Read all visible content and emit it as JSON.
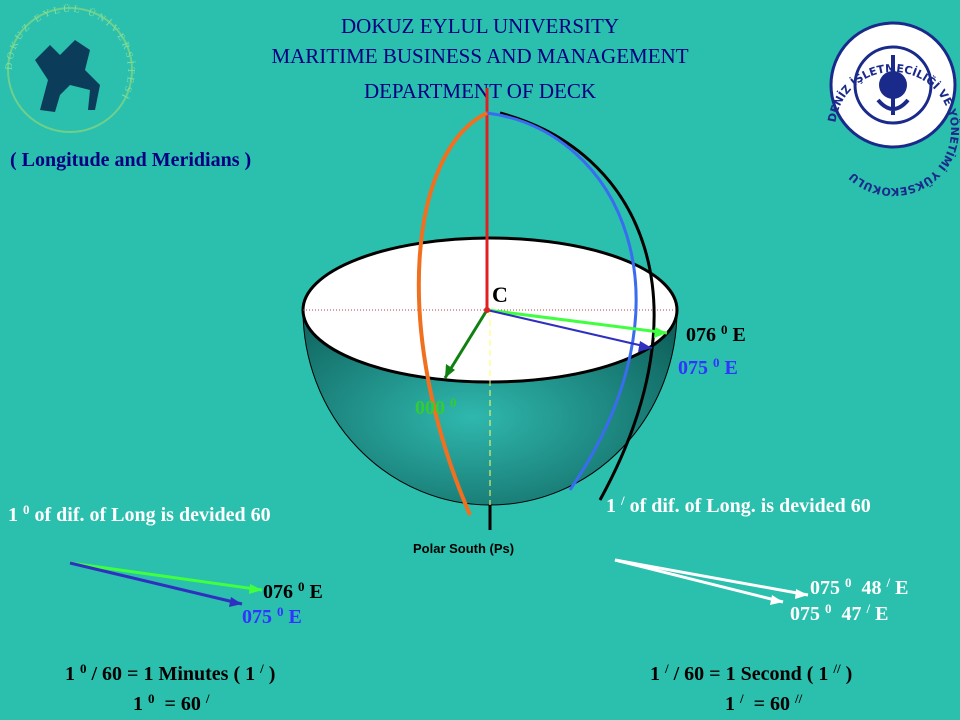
{
  "header": {
    "lines": [
      "DOKUZ EYLUL UNIVERSITY",
      "MARITIME BUSINESS AND MANAGEMENT",
      "DEPARTMENT OF DECK"
    ]
  },
  "subtitle": "( Longitude and Meridians )",
  "logos": {
    "left": "DOKUZ EYLÜL ÜNİVERSİTESİ",
    "right": "DENİZ İŞLETMECİLİĞİ VE YÖNETİMİ YÜKSEKOKULU"
  },
  "diagram": {
    "center": "C",
    "pole": "Polar South (Ps)",
    "labels": [
      {
        "parts": [
          "076 ",
          "0",
          " E"
        ]
      },
      {
        "parts": [
          "075 ",
          "0",
          " E"
        ]
      },
      {
        "parts": [
          "000 ",
          "0"
        ]
      }
    ]
  },
  "left_panel": {
    "caption": {
      "parts": [
        "1 ",
        "0",
        " of dif. of Long is devided 60"
      ]
    },
    "labels": [
      {
        "parts": [
          "076 ",
          "0",
          " E"
        ]
      },
      {
        "parts": [
          "075 ",
          "0",
          " E"
        ]
      }
    ],
    "formulas": [
      {
        "parts": [
          "1 ",
          "0",
          " / 60 = 1 Minutes ( 1 ",
          "/",
          " )"
        ]
      },
      {
        "parts": [
          "1 ",
          "0",
          "  = 60 ",
          "/"
        ]
      }
    ]
  },
  "right_panel": {
    "caption": {
      "parts": [
        "1 ",
        "/",
        " of dif. of Long. is devided 60"
      ]
    },
    "labels": [
      {
        "parts": [
          "075 ",
          "0",
          "  48 ",
          "/",
          " E"
        ]
      },
      {
        "parts": [
          "075 ",
          "0",
          "  47 ",
          "/",
          " E"
        ]
      }
    ],
    "formulas": [
      {
        "parts": [
          "1 ",
          "/",
          " / 60 = 1 Second ( 1 ",
          "//",
          " )"
        ]
      },
      {
        "parts": [
          "1 ",
          "/",
          "  = 60 ",
          "//"
        ]
      }
    ]
  }
}
